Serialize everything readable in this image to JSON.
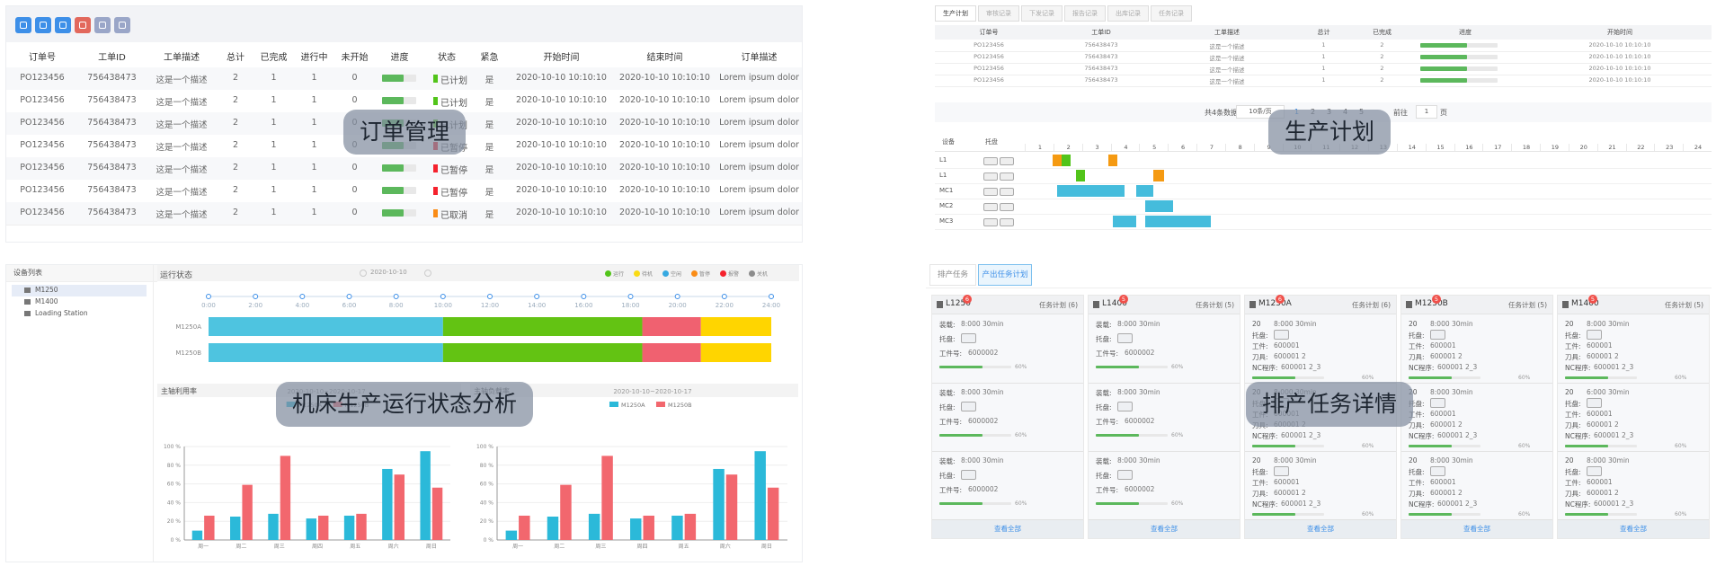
{
  "orders": {
    "headers": [
      "订单号",
      "工单ID",
      "工单描述",
      "总计",
      "已完成",
      "进行中",
      "未开始",
      "进度",
      "状态",
      "紧急",
      "开始时间",
      "结束时间",
      "订单描述"
    ],
    "rows": [
      {
        "order": "PO123456",
        "ticket": "756438473",
        "desc": "这是一个描述",
        "total": 2,
        "done": 1,
        "doing": 1,
        "todo": 0,
        "progress": 62,
        "status": "已计划",
        "status_color": "#52c41a",
        "urgent": "是",
        "start": "2020-10-10 10:10:10",
        "end": "2020-10-10 10:10:10",
        "note": "Lorem ipsum dolor"
      },
      {
        "order": "PO123456",
        "ticket": "756438473",
        "desc": "这是一个描述",
        "total": 2,
        "done": 1,
        "doing": 1,
        "todo": 0,
        "progress": 62,
        "status": "已计划",
        "status_color": "#52c41a",
        "urgent": "是",
        "start": "2020-10-10 10:10:10",
        "end": "2020-10-10 10:10:10",
        "note": "Lorem ipsum dolor"
      },
      {
        "order": "PO123456",
        "ticket": "756438473",
        "desc": "这是一个描述",
        "total": 2,
        "done": 1,
        "doing": 1,
        "todo": 0,
        "progress": 62,
        "status": "已计划",
        "status_color": "#52c41a",
        "urgent": "是",
        "start": "2020-10-10 10:10:10",
        "end": "2020-10-10 10:10:10",
        "note": "Lorem ipsum dolor"
      },
      {
        "order": "PO123456",
        "ticket": "756438473",
        "desc": "这是一个描述",
        "total": 2,
        "done": 1,
        "doing": 1,
        "todo": 0,
        "progress": 62,
        "status": "已暂停",
        "status_color": "#f5222d",
        "urgent": "是",
        "start": "2020-10-10 10:10:10",
        "end": "2020-10-10 10:10:10",
        "note": "Lorem ipsum dolor"
      },
      {
        "order": "PO123456",
        "ticket": "756438473",
        "desc": "这是一个描述",
        "total": 2,
        "done": 1,
        "doing": 1,
        "todo": 0,
        "progress": 62,
        "status": "已暂停",
        "status_color": "#f5222d",
        "urgent": "是",
        "start": "2020-10-10 10:10:10",
        "end": "2020-10-10 10:10:10",
        "note": "Lorem ipsum dolor"
      },
      {
        "order": "PO123456",
        "ticket": "756438473",
        "desc": "这是一个描述",
        "total": 2,
        "done": 1,
        "doing": 1,
        "todo": 0,
        "progress": 62,
        "status": "已暂停",
        "status_color": "#f5222d",
        "urgent": "是",
        "start": "2020-10-10 10:10:10",
        "end": "2020-10-10 10:10:10",
        "note": "Lorem ipsum dolor"
      },
      {
        "order": "PO123456",
        "ticket": "756438473",
        "desc": "这是一个描述",
        "total": 2,
        "done": 1,
        "doing": 1,
        "todo": 0,
        "progress": 62,
        "status": "已取消",
        "status_color": "#fa8c16",
        "urgent": "是",
        "start": "2020-10-10 10:10:10",
        "end": "2020-10-10 10:10:10",
        "note": "Lorem ipsum dolor"
      }
    ],
    "overlay": "订单管理"
  },
  "plan": {
    "tabs": [
      "生产计划",
      "审核记录",
      "下发记录",
      "报告记录",
      "出库记录",
      "任务记录"
    ],
    "headers": [
      "订单号",
      "工单ID",
      "工单描述",
      "总计",
      "已完成",
      "进度",
      "开始时间"
    ],
    "rows": [
      {
        "order": "PO123456",
        "ticket": "756438473",
        "desc": "这是一个描述",
        "total": 1,
        "done": 2,
        "progress": 60,
        "start": "2020-10-10 10:10:10"
      },
      {
        "order": "PO123456",
        "ticket": "756438473",
        "desc": "这是一个描述",
        "total": 1,
        "done": 2,
        "progress": 60,
        "start": "2020-10-10 10:10:10"
      },
      {
        "order": "PO123456",
        "ticket": "756438473",
        "desc": "这是一个描述",
        "total": 1,
        "done": 2,
        "progress": 60,
        "start": "2020-10-10 10:10:10"
      },
      {
        "order": "PO123456",
        "ticket": "756438473",
        "desc": "这是一个描述",
        "total": 1,
        "done": 2,
        "progress": 60,
        "start": "2020-10-10 10:10:10"
      }
    ],
    "pagination": {
      "total": "共4条数据",
      "size": "10条/页",
      "pages": [
        1,
        2,
        3,
        4,
        5
      ],
      "goto": "前往",
      "page": 1,
      "unit": "页"
    },
    "gantt": {
      "device_header": "设备",
      "pallet_header": "托盘",
      "hours": [
        1,
        2,
        3,
        4,
        5,
        6,
        7,
        8,
        9,
        10,
        11,
        12,
        13,
        14,
        15,
        16,
        17,
        18,
        19,
        20,
        21,
        22,
        23,
        24
      ],
      "rows": [
        {
          "device": "L1",
          "bars": [
            {
              "start": 0.97,
              "end": 1.28,
              "color": "#f59a12"
            },
            {
              "start": 1.28,
              "end": 1.59,
              "color": "#52c41a"
            },
            {
              "start": 2.92,
              "end": 3.23,
              "color": "#f59a12"
            }
          ]
        },
        {
          "device": "L1",
          "bars": [
            {
              "start": 1.79,
              "end": 2.1,
              "color": "#52c41a"
            },
            {
              "start": 4.5,
              "end": 4.86,
              "color": "#f59a12"
            }
          ]
        },
        {
          "device": "MC1",
          "bars": [
            {
              "start": 1.13,
              "end": 3.5,
              "color": "#45bcdc"
            },
            {
              "start": 3.89,
              "end": 4.5,
              "color": "#45bcdc"
            }
          ]
        },
        {
          "device": "MC2",
          "bars": [
            {
              "start": 4.2,
              "end": 5.17,
              "color": "#45bcdc"
            }
          ]
        },
        {
          "device": "MC3",
          "bars": [
            {
              "start": 3.08,
              "end": 3.89,
              "color": "#45bcdc"
            },
            {
              "start": 4.2,
              "end": 6.5,
              "color": "#45bcdc"
            }
          ]
        }
      ]
    },
    "overlay": "生产计划"
  },
  "status": {
    "device_title": "设备列表",
    "devices": [
      "M1250",
      "M1400",
      "Loading Station"
    ],
    "run_title": "运行状态",
    "date": "2020-10-10",
    "legend": [
      {
        "name": "运行",
        "color": "#52c41a"
      },
      {
        "name": "待机",
        "color": "#fadb14"
      },
      {
        "name": "空闲",
        "color": "#36a9e1"
      },
      {
        "name": "暂停",
        "color": "#fa8c16"
      },
      {
        "name": "报警",
        "color": "#f5222d"
      },
      {
        "name": "关机",
        "color": "#8c8c8c"
      }
    ],
    "xlim": [
      0,
      24
    ],
    "xticks": [
      {
        "value": 0,
        "label": "0:00"
      },
      {
        "value": 2,
        "label": "2:00"
      },
      {
        "value": 4,
        "label": "4:00"
      },
      {
        "value": 6,
        "label": "6:00"
      },
      {
        "value": 8,
        "label": "8:00"
      },
      {
        "value": 10,
        "label": "10:00"
      },
      {
        "value": 12,
        "label": "12:00"
      },
      {
        "value": 14,
        "label": "14:00"
      },
      {
        "value": 16,
        "label": "16:00"
      },
      {
        "value": 18,
        "label": "18:00"
      },
      {
        "value": 20,
        "label": "20:00"
      },
      {
        "value": 22,
        "label": "22:00"
      },
      {
        "value": 24,
        "label": "24:00"
      }
    ],
    "timeline": [
      {
        "name": "M1250A",
        "segments": [
          {
            "start": 0,
            "end": 10,
            "color": "#4ec4e0"
          },
          {
            "start": 10,
            "end": 18.5,
            "color": "#63c313"
          },
          {
            "start": 18.5,
            "end": 21,
            "color": "#f06170"
          },
          {
            "start": 21,
            "end": 24,
            "color": "#ffd500"
          }
        ]
      },
      {
        "name": "M1250B",
        "segments": [
          {
            "start": 0,
            "end": 10,
            "color": "#4ec4e0"
          },
          {
            "start": 10,
            "end": 18.5,
            "color": "#63c313"
          },
          {
            "start": 18.5,
            "end": 21,
            "color": "#f06170"
          },
          {
            "start": 21,
            "end": 24,
            "color": "#ffd500"
          }
        ]
      }
    ],
    "charts": [
      {
        "type": "bar",
        "title": "主轴利用率",
        "range": "2020-10-10~2020-10-17",
        "categories": [
          "周一",
          "周二",
          "周三",
          "周四",
          "周五",
          "周六",
          "周日"
        ],
        "series": [
          {
            "name": "M1250A",
            "color": "#2bb9d9",
            "values": [
              10,
              25,
              28,
              23,
              26,
              76,
              95
            ]
          },
          {
            "name": "M1250B",
            "color": "#f2676e",
            "values": [
              26,
              59,
              90,
              26,
              28,
              70,
              56
            ]
          }
        ],
        "ylim": [
          0,
          100
        ],
        "yticks": [
          {
            "value": 0,
            "label": "0 %"
          },
          {
            "value": 20,
            "label": "20 %"
          },
          {
            "value": 40,
            "label": "40 %"
          },
          {
            "value": 60,
            "label": "60 %"
          },
          {
            "value": 80,
            "label": "80 %"
          },
          {
            "value": 100,
            "label": "100 %"
          }
        ]
      },
      {
        "type": "bar",
        "title": "主轴负载率",
        "range": "2020-10-10~2020-10-17",
        "categories": [
          "周一",
          "周二",
          "周三",
          "周四",
          "周五",
          "周六",
          "周日"
        ],
        "series": [
          {
            "name": "M1250A",
            "color": "#2bb9d9",
            "values": [
              10,
              25,
              28,
              23,
              26,
              76,
              95
            ]
          },
          {
            "name": "M1250B",
            "color": "#f2676e",
            "values": [
              26,
              59,
              90,
              26,
              28,
              70,
              56
            ]
          }
        ],
        "ylim": [
          0,
          100
        ],
        "yticks": [
          {
            "value": 0,
            "label": "0 %"
          },
          {
            "value": 20,
            "label": "20 %"
          },
          {
            "value": 40,
            "label": "40 %"
          },
          {
            "value": 60,
            "label": "60 %"
          },
          {
            "value": 80,
            "label": "80 %"
          },
          {
            "value": 100,
            "label": "100 %"
          }
        ]
      }
    ],
    "overlay": "机床生产运行状态分析"
  },
  "tasks": {
    "tabs": [
      "排产任务",
      "产出任务计划"
    ],
    "footer": "查看全部",
    "cards": [
      {
        "name": "L1250",
        "badge": 6,
        "count": "任务计划 (6)",
        "tasks": [
          {
            "lines": [
              [
                "装载:",
                "8:000  30min"
              ],
              [
                "托盘:"
              ],
              [
                "工件号:",
                "6000002"
              ]
            ],
            "progress": 60,
            "progress_label": "60%"
          },
          {
            "lines": [
              [
                "装载:",
                "8:000  30min"
              ],
              [
                "托盘:"
              ],
              [
                "工件号:",
                "6000002"
              ]
            ],
            "progress": 60,
            "progress_label": "60%"
          },
          {
            "lines": [
              [
                "装载:",
                "8:000  30min"
              ],
              [
                "托盘:"
              ],
              [
                "工件号:",
                "6000002"
              ]
            ],
            "progress": 60,
            "progress_label": "60%"
          }
        ]
      },
      {
        "name": "L1400",
        "badge": 5,
        "count": "任务计划 (5)",
        "tasks": [
          {
            "lines": [
              [
                "装载:",
                "8:000  30min"
              ],
              [
                "托盘:"
              ],
              [
                "工件号:",
                "6000002"
              ]
            ],
            "progress": 60,
            "progress_label": "60%"
          },
          {
            "lines": [
              [
                "装载:",
                "8:000  30min"
              ],
              [
                "托盘:"
              ],
              [
                "工件号:",
                "6000002"
              ]
            ],
            "progress": 60,
            "progress_label": "60%"
          },
          {
            "lines": [
              [
                "装载:",
                "8:000  30min"
              ],
              [
                "托盘:"
              ],
              [
                "工件号:",
                "6000002"
              ]
            ],
            "progress": 60,
            "progress_label": "60%"
          }
        ]
      },
      {
        "name": "M1250A",
        "badge": 6,
        "count": "任务计划 (6)",
        "tasks": [
          {
            "lines": [
              [
                "20",
                "8:000  30min"
              ],
              [
                "托盘:"
              ],
              [
                "工件:",
                "600001"
              ],
              [
                "刀具:",
                "600001 2"
              ],
              [
                "NC程序:",
                "600001 2_3"
              ]
            ],
            "progress": 60,
            "progress_label": "60%"
          },
          {
            "lines": [
              [
                "20",
                "8:000  30min"
              ],
              [
                "托盘:"
              ],
              [
                "工件:",
                "600001"
              ],
              [
                "刀具:",
                "600001 2"
              ],
              [
                "NC程序:",
                "600001 2_3"
              ]
            ],
            "progress": 60,
            "progress_label": "60%"
          },
          {
            "lines": [
              [
                "20",
                "8:000  30min"
              ],
              [
                "托盘:"
              ],
              [
                "工件:",
                "600001"
              ],
              [
                "刀具:",
                "600001 2"
              ],
              [
                "NC程序:",
                "600001 2_3"
              ]
            ],
            "progress": 60,
            "progress_label": "60%"
          }
        ]
      },
      {
        "name": "M1250B",
        "badge": 5,
        "count": "任务计划 (5)",
        "tasks": [
          {
            "lines": [
              [
                "20",
                "8:000  30min"
              ],
              [
                "托盘:"
              ],
              [
                "工件:",
                "600001"
              ],
              [
                "刀具:",
                "600001 2"
              ],
              [
                "NC程序:",
                "600001 2_3"
              ]
            ],
            "progress": 60,
            "progress_label": "60%"
          },
          {
            "lines": [
              [
                "20",
                "8:000  30min"
              ],
              [
                "托盘:"
              ],
              [
                "工件:",
                "600001"
              ],
              [
                "刀具:",
                "600001 2"
              ],
              [
                "NC程序:",
                "600001 2_3"
              ]
            ],
            "progress": 60,
            "progress_label": "60%"
          },
          {
            "lines": [
              [
                "20",
                "8:000  30min"
              ],
              [
                "托盘:"
              ],
              [
                "工件:",
                "600001"
              ],
              [
                "刀具:",
                "600001 2"
              ],
              [
                "NC程序:",
                "600001 2_3"
              ]
            ],
            "progress": 60,
            "progress_label": "60%"
          }
        ]
      },
      {
        "name": "M1400",
        "badge": 5,
        "count": "任务计划 (5)",
        "tasks": [
          {
            "lines": [
              [
                "20",
                "8:000  30min"
              ],
              [
                "托盘:"
              ],
              [
                "工件:",
                "600001"
              ],
              [
                "刀具:",
                "600001 2"
              ],
              [
                "NC程序:",
                "600001 2_3"
              ]
            ],
            "progress": 60,
            "progress_label": "60%"
          },
          {
            "lines": [
              [
                "20",
                "6:000  30min"
              ],
              [
                "托盘:"
              ],
              [
                "工件:",
                "600001"
              ],
              [
                "刀具:",
                "600001 2"
              ],
              [
                "NC程序:",
                "600001 2_3"
              ]
            ],
            "progress": 60,
            "progress_label": "60%"
          },
          {
            "lines": [
              [
                "20",
                "8:000  30min"
              ],
              [
                "托盘:"
              ],
              [
                "工件:",
                "600001"
              ],
              [
                "刀具:",
                "600001 2"
              ],
              [
                "NC程序:",
                "600001 2_3"
              ]
            ],
            "progress": 60,
            "progress_label": "60%"
          }
        ]
      }
    ],
    "overlay": "排产任务详情"
  }
}
